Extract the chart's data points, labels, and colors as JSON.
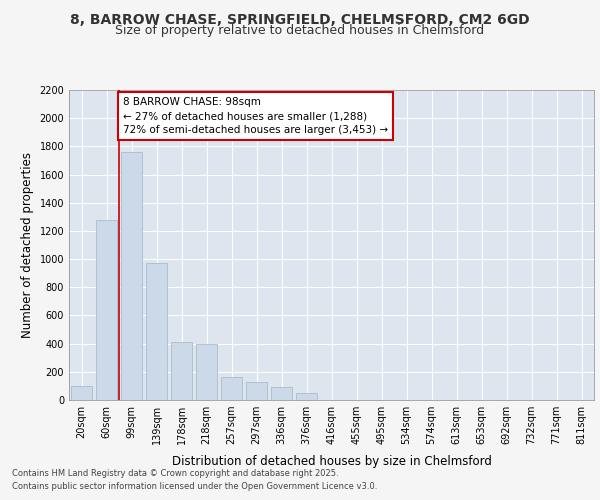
{
  "title_line1": "8, BARROW CHASE, SPRINGFIELD, CHELMSFORD, CM2 6GD",
  "title_line2": "Size of property relative to detached houses in Chelmsford",
  "xlabel": "Distribution of detached houses by size in Chelmsford",
  "ylabel": "Number of detached properties",
  "footer_line1": "Contains HM Land Registry data © Crown copyright and database right 2025.",
  "footer_line2": "Contains public sector information licensed under the Open Government Licence v3.0.",
  "annotation_line1": "8 BARROW CHASE: 98sqm",
  "annotation_line2": "← 27% of detached houses are smaller (1,288)",
  "annotation_line3": "72% of semi-detached houses are larger (3,453) →",
  "bar_color": "#ccd9e8",
  "bar_edge_color": "#aabccc",
  "vline_color": "#cc0000",
  "background_color": "#f5f5f5",
  "plot_bg_color": "#dde5ef",
  "grid_color": "#ffffff",
  "title_color": "#333333",
  "categories": [
    "20sqm",
    "60sqm",
    "99sqm",
    "139sqm",
    "178sqm",
    "218sqm",
    "257sqm",
    "297sqm",
    "336sqm",
    "376sqm",
    "416sqm",
    "455sqm",
    "495sqm",
    "534sqm",
    "574sqm",
    "613sqm",
    "653sqm",
    "692sqm",
    "732sqm",
    "771sqm",
    "811sqm"
  ],
  "values": [
    100,
    1280,
    1760,
    970,
    415,
    395,
    160,
    130,
    95,
    50,
    0,
    0,
    0,
    0,
    0,
    0,
    0,
    0,
    0,
    0,
    0
  ],
  "ylim": [
    0,
    2200
  ],
  "yticks": [
    0,
    200,
    400,
    600,
    800,
    1000,
    1200,
    1400,
    1600,
    1800,
    2000,
    2200
  ],
  "vline_bar_index": 2,
  "title_fontsize": 10,
  "subtitle_fontsize": 9,
  "axis_label_fontsize": 8.5,
  "tick_fontsize": 7,
  "annotation_fontsize": 7.5,
  "footer_fontsize": 6
}
